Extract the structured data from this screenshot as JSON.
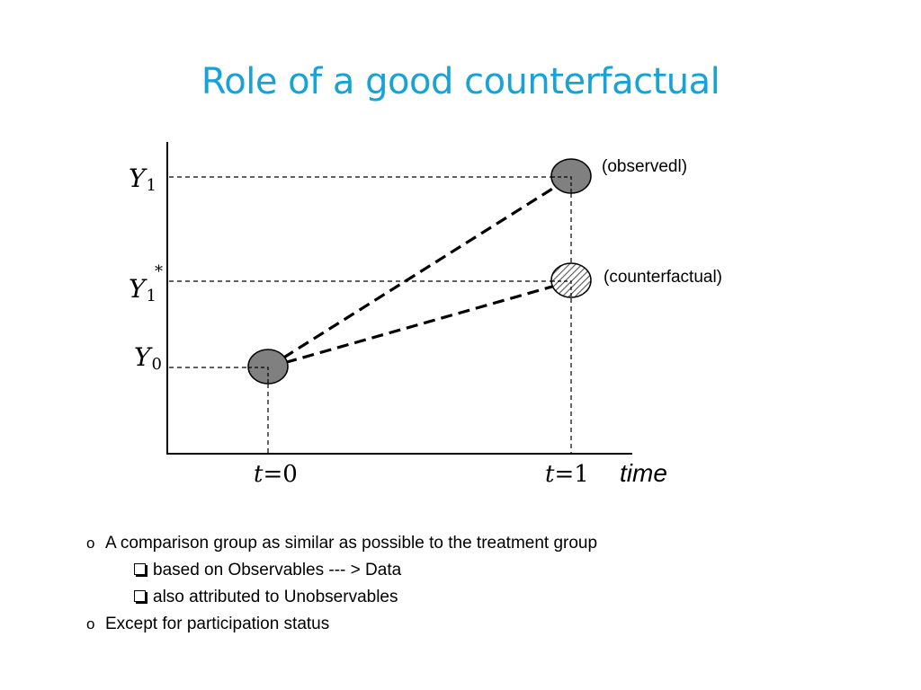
{
  "title": "Role of a good counterfactual",
  "diagram": {
    "y_labels": {
      "y1_base": "Y",
      "y1_sub": "1",
      "y1star_base": "Y",
      "y1star_sub": "1",
      "y1star_sup": "*",
      "y0_base": "Y",
      "y0_sub": "0"
    },
    "t_labels": {
      "t0_var": "t",
      "t0_rest": "=0",
      "t1_var": "t",
      "t1_rest": "=1"
    },
    "x_axis_label": "time",
    "point_labels": {
      "observed": "(observedl)",
      "counterfactual": "(counterfactual)"
    },
    "colors": {
      "point_fill": "#808080",
      "axis": "#000000"
    }
  },
  "bullets": [
    {
      "glyph": "o",
      "text": "A comparison group as similar as possible to the treatment group"
    },
    {
      "glyph": "box",
      "text": "based on Observables --- > Data"
    },
    {
      "glyph": "box",
      "text": "also attributed to Unobservables"
    },
    {
      "glyph": "o",
      "text": "Except for participation status"
    }
  ]
}
